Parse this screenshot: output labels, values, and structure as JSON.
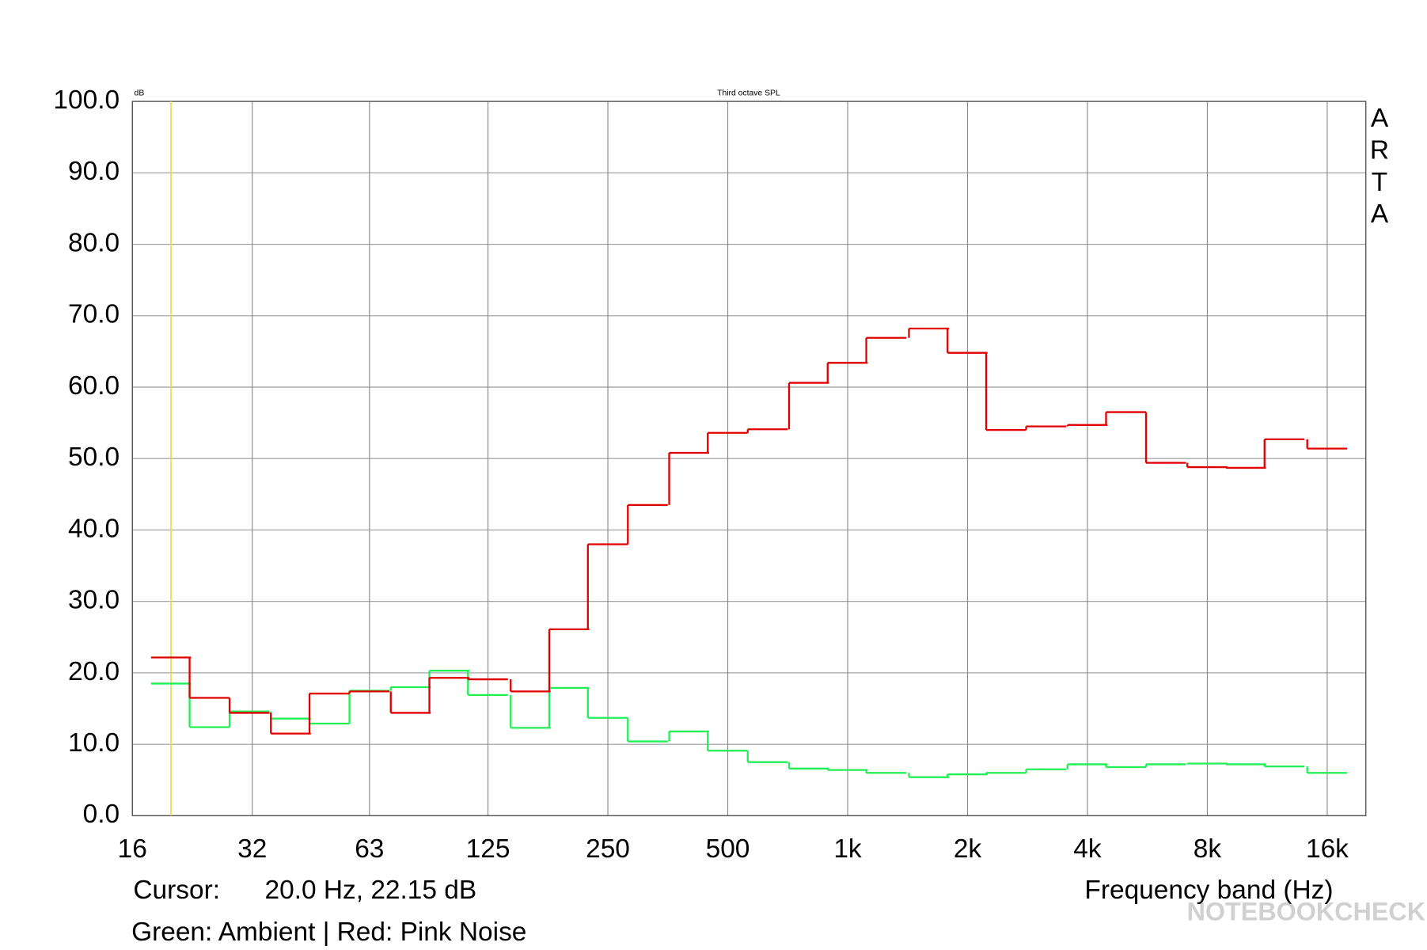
{
  "chart_data": {
    "type": "step",
    "title": "Third octave SPL",
    "y_unit": "dB",
    "x_label": "Frequency band (Hz)",
    "brand": [
      "A",
      "R",
      "T",
      "A"
    ],
    "cursor_label": "Cursor:",
    "cursor_readout": "20.0 Hz, 22.15 dB",
    "cursor_x": 20,
    "cursor_color": "#e6e04a",
    "note": "Green: Ambient | Red: Pink Noise",
    "watermark": "NOTEBOOKCHECK",
    "x_scale": "log",
    "grid": true,
    "x": [
      20,
      25,
      31.5,
      40,
      50,
      63,
      80,
      100,
      125,
      160,
      200,
      250,
      315,
      400,
      500,
      630,
      800,
      1000,
      1250,
      1600,
      2000,
      2500,
      3150,
      4000,
      5000,
      6300,
      8000,
      10000,
      12500,
      16000
    ],
    "series": [
      {
        "color": "#22ee55",
        "values": [
          18.5,
          12.4,
          14.6,
          13.6,
          12.9,
          17.5,
          18.0,
          20.3,
          16.9,
          12.3,
          17.9,
          13.7,
          10.4,
          11.8,
          9.1,
          7.5,
          6.6,
          6.4,
          6.0,
          5.4,
          5.8,
          6.0,
          6.5,
          7.2,
          6.8,
          7.2,
          7.3,
          7.2,
          6.9,
          6.0
        ]
      },
      {
        "color": "#e00000",
        "values": [
          22.15,
          16.5,
          14.4,
          11.5,
          17.1,
          17.4,
          14.4,
          19.3,
          19.1,
          17.4,
          26.1,
          38.0,
          43.5,
          50.8,
          53.6,
          54.1,
          60.6,
          63.4,
          66.9,
          68.2,
          64.8,
          54.0,
          54.5,
          54.7,
          56.5,
          49.4,
          48.8,
          48.7,
          52.7,
          51.4
        ]
      }
    ],
    "xlim": [
      16,
      20000
    ],
    "xticks": [
      16,
      32,
      63,
      125,
      250,
      500,
      {
        "value": 1000,
        "label": "1k"
      },
      {
        "value": 2000,
        "label": "2k"
      },
      {
        "value": 4000,
        "label": "4k"
      },
      {
        "value": 8000,
        "label": "8k"
      },
      {
        "value": 16000,
        "label": "16k"
      }
    ],
    "ylim": [
      0,
      100
    ],
    "yticks": [
      {
        "value": 0,
        "label": "0.0"
      },
      {
        "value": 10,
        "label": "10.0"
      },
      {
        "value": 20,
        "label": "20.0"
      },
      {
        "value": 30,
        "label": "30.0"
      },
      {
        "value": 40,
        "label": "40.0"
      },
      {
        "value": 50,
        "label": "50.0"
      },
      {
        "value": 60,
        "label": "60.0"
      },
      {
        "value": 70,
        "label": "70.0"
      },
      {
        "value": 80,
        "label": "80.0"
      },
      {
        "value": 90,
        "label": "90.0"
      },
      {
        "value": 100,
        "label": "100.0"
      }
    ]
  }
}
